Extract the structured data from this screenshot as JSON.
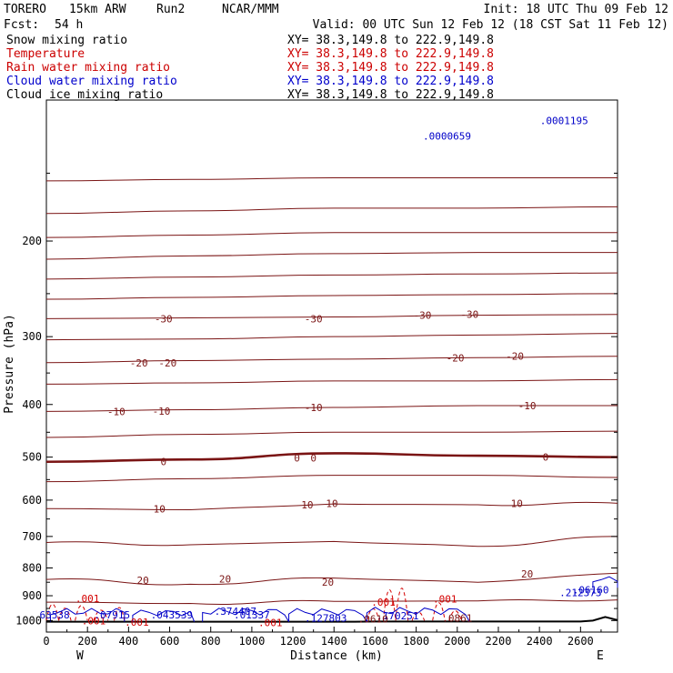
{
  "header": {
    "model": "TORERO",
    "resolution": "15km ARW",
    "run": "Run2",
    "source": "NCAR/MMM",
    "init": "Init: 18 UTC Thu 09 Feb 12",
    "fcst_label": "Fcst:",
    "fcst_value": "54 h",
    "valid": "Valid: 00 UTC Sun 12 Feb 12 (18 CST Sat 11 Feb 12)"
  },
  "fields": [
    {
      "name": "Snow mixing ratio",
      "xy": "",
      "color": "#000000"
    },
    {
      "name": "Temperature",
      "xy": "XY=  38.3,149.8 to 222.9,149.8",
      "color": "#cc0000"
    },
    {
      "name": "Rain water mixing ratio",
      "xy": "XY=  38.3,149.8 to 222.9,149.8",
      "color": "#cc0000"
    },
    {
      "name": "Cloud water mixing ratio",
      "xy": "XY=  38.3,149.8 to 222.9,149.8",
      "color": "#0000cc"
    },
    {
      "name": "Cloud ice mixing ratio",
      "xy": "XY=  38.3,149.8 to 222.9,149.8",
      "color": "#000000"
    }
  ],
  "snow_xy": "XY=  38.3,149.8 to 222.9,149.8",
  "colors": {
    "temperature": "#7a1414",
    "rain": "#d40000",
    "cloud_water": "#0000c8",
    "axis": "#000000"
  },
  "chart_data": {
    "type": "line",
    "xlabel": "Distance (km)",
    "ylabel": "Pressure (hPa)",
    "xlim": [
      0,
      2780
    ],
    "ylim": [
      1050,
      110
    ],
    "x_ticks": [
      0,
      200,
      400,
      600,
      800,
      1000,
      1200,
      1400,
      1600,
      1800,
      2000,
      2200,
      2400,
      2600
    ],
    "y_ticks": [
      200,
      300,
      400,
      500,
      600,
      700,
      800,
      900,
      1000
    ],
    "endpoints": {
      "left": "W",
      "right": "E"
    },
    "temperature_isotherms": [
      {
        "level": -60,
        "pressure": [
          155,
          154,
          153,
          153,
          153
        ]
      },
      {
        "level": -55,
        "pressure": [
          178,
          176,
          174,
          174,
          173
        ]
      },
      {
        "level": -50,
        "pressure": [
          197,
          195,
          193,
          193,
          193
        ]
      },
      {
        "level": -45,
        "pressure": [
          216,
          213,
          211,
          210,
          210
        ]
      },
      {
        "level": -40,
        "pressure": [
          235,
          233,
          231,
          230,
          229
        ]
      },
      {
        "level": -35,
        "pressure": [
          256,
          254,
          252,
          251,
          250
        ]
      },
      {
        "level": -30,
        "pressure": [
          278,
          277,
          276,
          274,
          273
        ]
      },
      {
        "level": -25,
        "pressure": [
          304,
          303,
          300,
          298,
          296
        ]
      },
      {
        "level": -20,
        "pressure": [
          335,
          332,
          330,
          328,
          326
        ]
      },
      {
        "level": -15,
        "pressure": [
          367,
          365,
          362,
          362,
          360
        ]
      },
      {
        "level": -10,
        "pressure": [
          412,
          409,
          405,
          402,
          402
        ]
      },
      {
        "level": -5,
        "pressure": [
          460,
          454,
          450,
          450,
          448
        ]
      },
      {
        "level": 0,
        "pressure": [
          510,
          505,
          492,
          497,
          500
        ]
      },
      {
        "level": 5,
        "pressure": [
          555,
          548,
          540,
          540,
          545
        ]
      },
      {
        "level": 10,
        "pressure": [
          622,
          625,
          610,
          612,
          608
        ]
      },
      {
        "level": 15,
        "pressure": [
          718,
          725,
          715,
          730,
          700
        ]
      },
      {
        "level": 20,
        "pressure": [
          840,
          857,
          835,
          850,
          818
        ]
      },
      {
        "level": 25,
        "pressure": [
          925,
          930,
          922,
          920,
          916
        ]
      }
    ],
    "isotherm_x": [
      0,
      700,
      1400,
      2100,
      2780
    ],
    "labels": [
      {
        "text": "-30",
        "x": 570,
        "p": 278
      },
      {
        "text": "-30",
        "x": 1300,
        "p": 278
      },
      {
        "text": "-30",
        "x": 1830,
        "p": 274
      },
      {
        "text": "-30",
        "x": 2060,
        "p": 273
      },
      {
        "text": "-20",
        "x": 450,
        "p": 335
      },
      {
        "text": "-20",
        "x": 590,
        "p": 335
      },
      {
        "text": "-20",
        "x": 1990,
        "p": 328
      },
      {
        "text": "-20",
        "x": 2280,
        "p": 326
      },
      {
        "text": "-10",
        "x": 340,
        "p": 412
      },
      {
        "text": "-10",
        "x": 560,
        "p": 411
      },
      {
        "text": "-10",
        "x": 1300,
        "p": 405
      },
      {
        "text": "-10",
        "x": 2340,
        "p": 402
      },
      {
        "text": "0",
        "x": 570,
        "p": 510
      },
      {
        "text": "0",
        "x": 1220,
        "p": 502
      },
      {
        "text": "0",
        "x": 1300,
        "p": 502
      },
      {
        "text": "0",
        "x": 2430,
        "p": 500
      },
      {
        "text": "10",
        "x": 550,
        "p": 623
      },
      {
        "text": "10",
        "x": 1270,
        "p": 612
      },
      {
        "text": "10",
        "x": 1390,
        "p": 608
      },
      {
        "text": "10",
        "x": 2290,
        "p": 608
      },
      {
        "text": "20",
        "x": 470,
        "p": 842
      },
      {
        "text": "20",
        "x": 870,
        "p": 838
      },
      {
        "text": "20",
        "x": 1370,
        "p": 850
      },
      {
        "text": "20",
        "x": 2340,
        "p": 820
      },
      {
        "text": ".001",
        "x": 200,
        "p": 910
      },
      {
        "text": ".001",
        "x": 1640,
        "p": 925
      },
      {
        "text": ".001",
        "x": 1940,
        "p": 912
      },
      {
        "text": ".001",
        "x": 230,
        "p": 1000
      },
      {
        "text": ".001",
        "x": 440,
        "p": 1006
      },
      {
        "text": ".001",
        "x": 1090,
        "p": 1008
      },
      {
        "text": ".0001195",
        "x": 2520,
        "p": 120
      },
      {
        "text": ".0000659",
        "x": 1950,
        "p": 128
      },
      {
        "text": ".374407",
        "x": 920,
        "p": 960
      },
      {
        "text": ".01337",
        "x": 1000,
        "p": 976
      },
      {
        "text": ".127803",
        "x": 1360,
        "p": 990
      },
      {
        "text": ".170251",
        "x": 1710,
        "p": 980
      },
      {
        "text": ".0861",
        "x": 2000,
        "p": 990
      },
      {
        "text": ".0610",
        "x": 1590,
        "p": 992
      },
      {
        "text": ".212373",
        "x": 2600,
        "p": 887
      },
      {
        "text": ".06160",
        "x": 2650,
        "p": 878
      },
      {
        "text": ".043539",
        "x": 610,
        "p": 976
      },
      {
        "text": ".07915",
        "x": 320,
        "p": 976
      },
      {
        "text": "63538",
        "x": 40,
        "p": 976
      }
    ]
  }
}
